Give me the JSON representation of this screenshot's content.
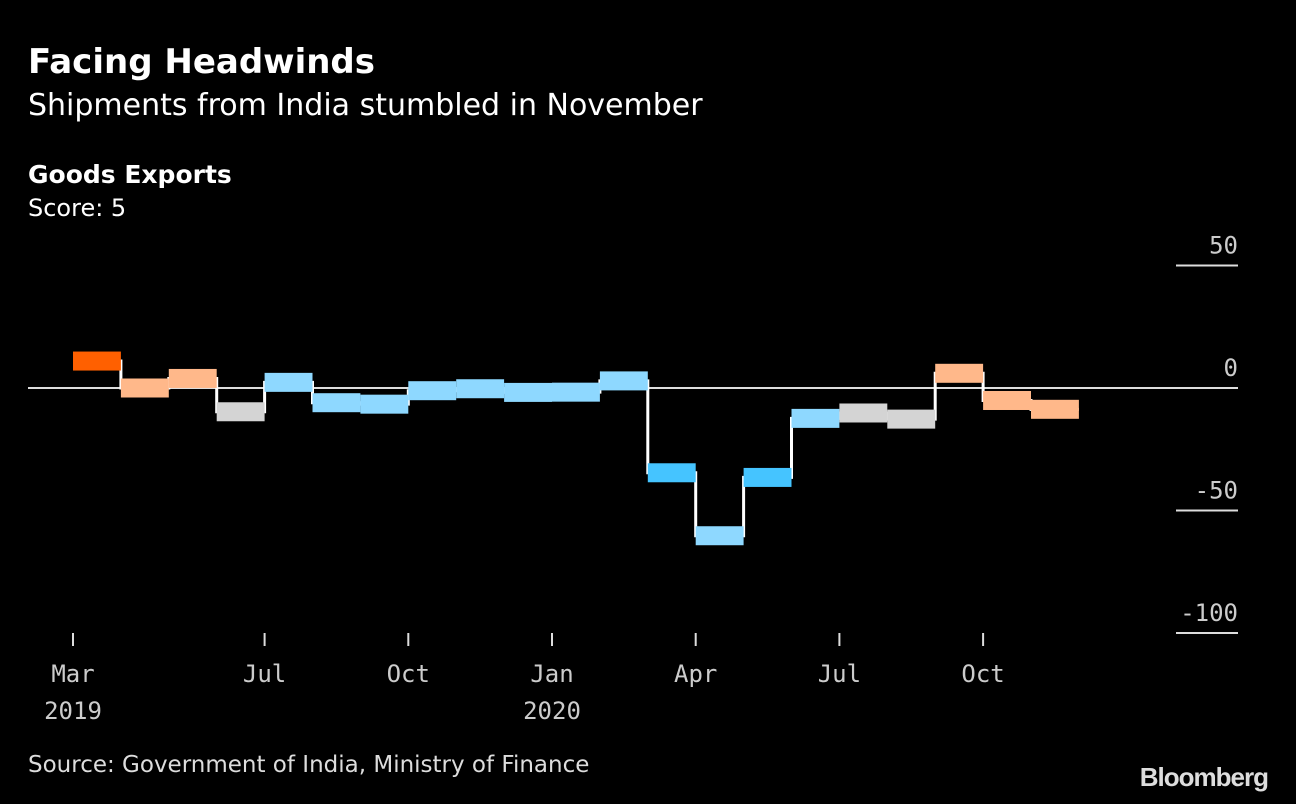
{
  "title": "Facing Headwinds",
  "subtitle": "Shipments from India stumbled in November",
  "source": "Source: Government of India, Ministry of Finance",
  "logo": "Bloomberg",
  "chart_data": {
    "type": "line",
    "style": "step with colored bars",
    "title": "Goods Exports",
    "subtitle": "Score: 5",
    "ylim": [
      -100,
      50
    ],
    "yticks": [
      50,
      0,
      -50,
      -100
    ],
    "ytick_labels": [
      "50",
      "0",
      "-50",
      "-100"
    ],
    "x": [
      "2019-03",
      "2019-04",
      "2019-05",
      "2019-06",
      "2019-07",
      "2019-08",
      "2019-09",
      "2019-10",
      "2019-11",
      "2019-12",
      "2020-01",
      "2020-02",
      "2020-03",
      "2020-04",
      "2020-05",
      "2020-06",
      "2020-07",
      "2020-08",
      "2020-09",
      "2020-10",
      "2020-11"
    ],
    "values": [
      11,
      0,
      3.9,
      -9.7,
      2.3,
      -6,
      -6.6,
      -1.1,
      -0.3,
      -1.8,
      -1.7,
      2.9,
      -34.6,
      -60.3,
      -36.5,
      -12.4,
      -10.2,
      -12.7,
      6,
      -5.1,
      -8.7
    ],
    "bar_colors": [
      "#ff6000",
      "#ffb88a",
      "#ffb88a",
      "#d4d4d4",
      "#8ed8ff",
      "#8ed8ff",
      "#8ed8ff",
      "#8ed8ff",
      "#8ed8ff",
      "#8ed8ff",
      "#8ed8ff",
      "#8ed8ff",
      "#45c4ff",
      "#8ed8ff",
      "#45c4ff",
      "#8ed8ff",
      "#d4d4d4",
      "#d4d4d4",
      "#ffb88a",
      "#ffb88a",
      "#ffb88a"
    ],
    "xticks": [
      {
        "x": "2019-03",
        "label": "Mar",
        "year": "2019"
      },
      {
        "x": "2019-07",
        "label": "Jul",
        "year": ""
      },
      {
        "x": "2019-10",
        "label": "Oct",
        "year": ""
      },
      {
        "x": "2020-01",
        "label": "Jan",
        "year": "2020"
      },
      {
        "x": "2020-04",
        "label": "Apr",
        "year": ""
      },
      {
        "x": "2020-07",
        "label": "Jul",
        "year": ""
      },
      {
        "x": "2020-10",
        "label": "Oct",
        "year": ""
      }
    ],
    "zero_line": true,
    "line_color": "#ffffff"
  }
}
